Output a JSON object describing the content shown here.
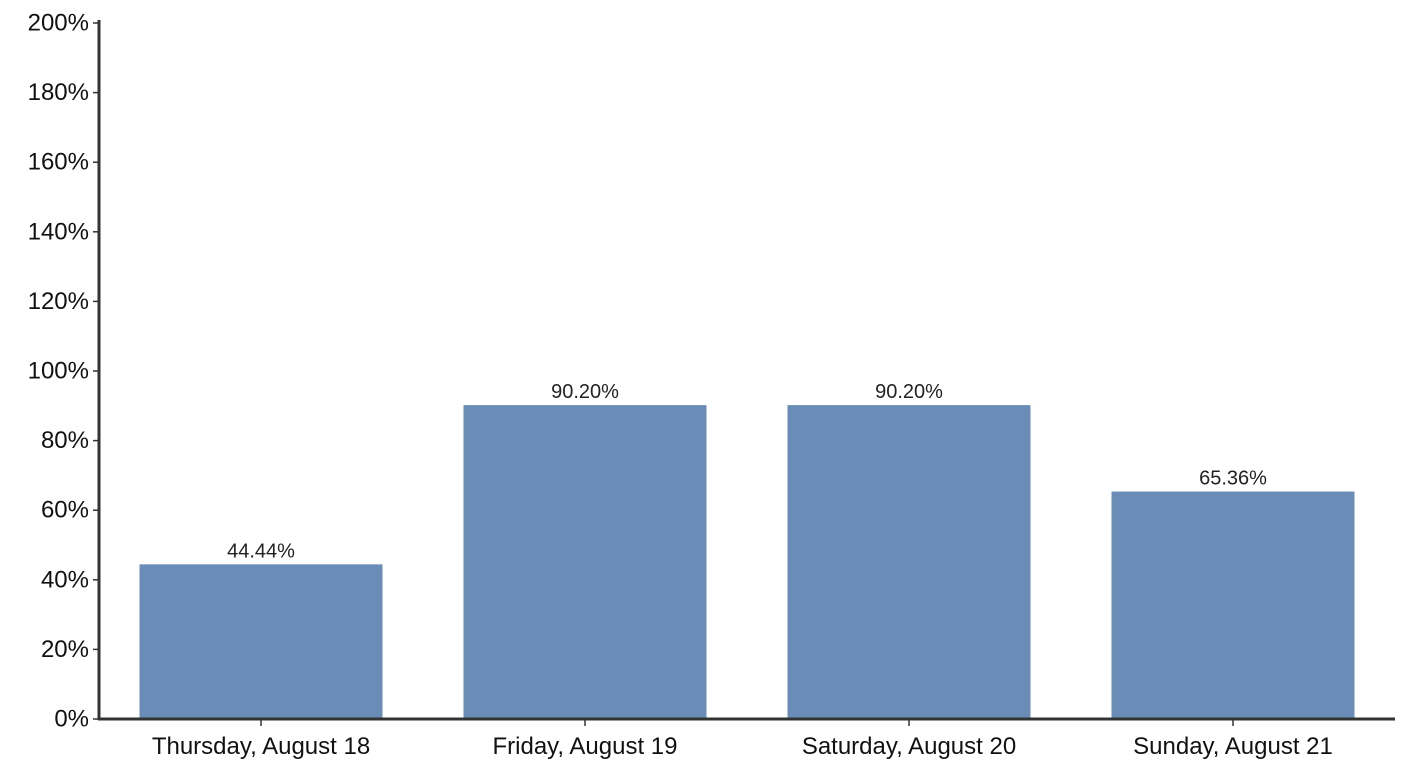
{
  "chart_data": {
    "type": "bar",
    "categories": [
      "Thursday, August 18",
      "Friday, August 19",
      "Saturday, August 20",
      "Sunday, August 21"
    ],
    "values": [
      44.44,
      90.2,
      90.2,
      65.36
    ],
    "data_labels": [
      "44.44%",
      "90.20%",
      "90.20%",
      "65.36%"
    ],
    "ylim": [
      0,
      200
    ],
    "y_ticks": [
      0,
      20,
      40,
      60,
      80,
      100,
      120,
      140,
      160,
      180,
      200
    ],
    "y_tick_labels": [
      "0%",
      "20%",
      "40%",
      "60%",
      "80%",
      "100%",
      "120%",
      "140%",
      "160%",
      "180%",
      "200%"
    ],
    "grid": false,
    "legend": "none",
    "colors": {
      "bar": "#6a8db8",
      "axis": "#333333"
    }
  }
}
